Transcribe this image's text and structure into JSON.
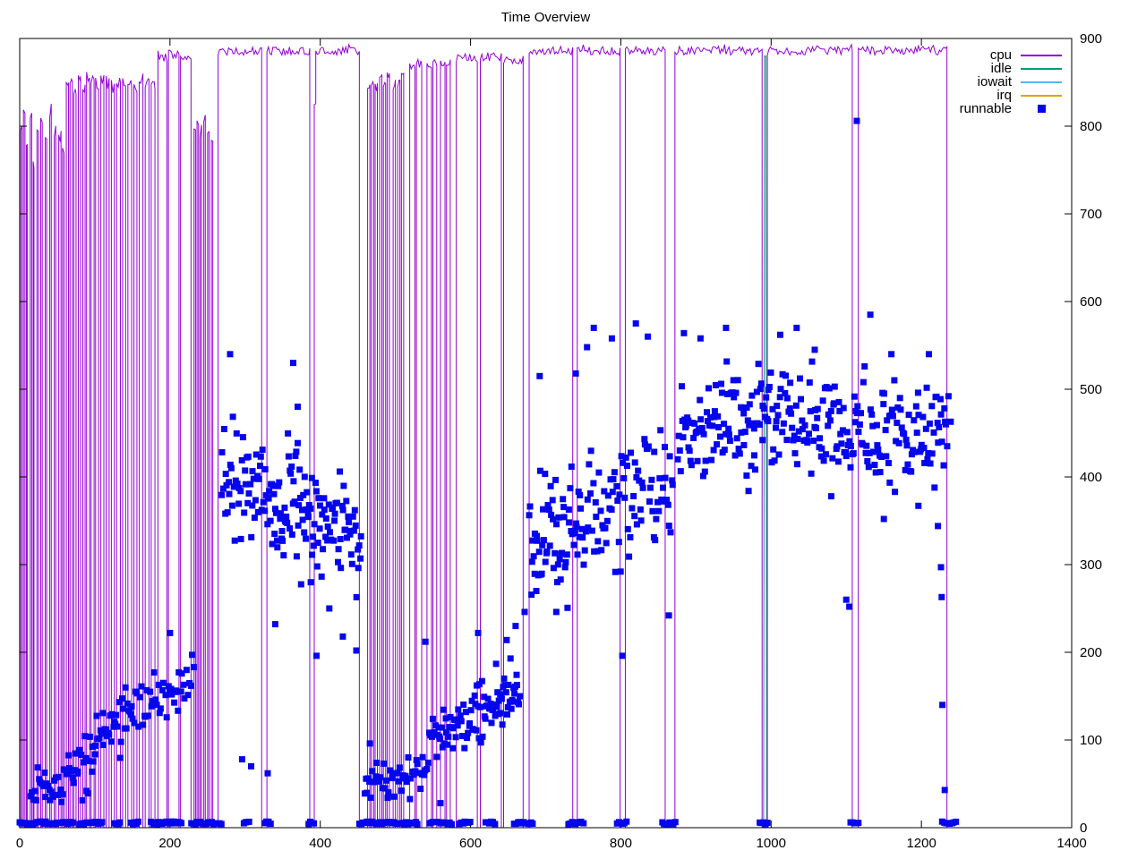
{
  "title": "Time Overview",
  "legend": {
    "entries": [
      {
        "label": "cpu",
        "color": "#9400d3",
        "type": "line"
      },
      {
        "label": "idle",
        "color": "#009e73",
        "type": "line"
      },
      {
        "label": "iowait",
        "color": "#56b4e9",
        "type": "line"
      },
      {
        "label": "irq",
        "color": "#e69f00",
        "type": "line"
      },
      {
        "label": "runnable",
        "color": "#0505ee",
        "type": "point"
      }
    ]
  },
  "chart_data": {
    "type": "line+scatter",
    "title": "Time Overview",
    "xlabel": "",
    "ylabel": "",
    "x_range": [
      0,
      1400
    ],
    "y_range": [
      0,
      900
    ],
    "x_ticks": [
      0,
      200,
      400,
      600,
      800,
      1000,
      1200,
      1400
    ],
    "y_ticks": [
      0,
      100,
      200,
      300,
      400,
      500,
      600,
      700,
      800,
      900
    ],
    "y_axis_side": "right",
    "grid": false,
    "legend_position": "inside top-right",
    "series": {
      "cpu": {
        "color": "#9400d3",
        "style": "pulse-line",
        "plateau_value": 886,
        "segments": [
          [
            1,
            3,
            800
          ],
          [
            5,
            7,
            818
          ],
          [
            9,
            10,
            780
          ],
          [
            14,
            16,
            812
          ],
          [
            18,
            19,
            752
          ],
          [
            23,
            25,
            795
          ],
          [
            28,
            30,
            806
          ],
          [
            34,
            36,
            788
          ],
          [
            40,
            42,
            810
          ],
          [
            46,
            48,
            796
          ],
          [
            52,
            55,
            790
          ],
          [
            57,
            59,
            772
          ],
          [
            62,
            65,
            848
          ],
          [
            67,
            70,
            856
          ],
          [
            72,
            75,
            842
          ],
          [
            78,
            81,
            850
          ],
          [
            84,
            87,
            846
          ],
          [
            89,
            93,
            858
          ],
          [
            95,
            99,
            852
          ],
          [
            101,
            105,
            848
          ],
          [
            108,
            112,
            856
          ],
          [
            115,
            119,
            850
          ],
          [
            122,
            126,
            845
          ],
          [
            129,
            134,
            852
          ],
          [
            137,
            141,
            848
          ],
          [
            144,
            149,
            851
          ],
          [
            152,
            156,
            846
          ],
          [
            159,
            164,
            853
          ],
          [
            167,
            172,
            848
          ],
          [
            175,
            180,
            845
          ],
          [
            184,
            196,
            878
          ],
          [
            198,
            212,
            882
          ],
          [
            214,
            228,
            880
          ],
          [
            232,
            234,
            798
          ],
          [
            236,
            238,
            806
          ],
          [
            240,
            242,
            795
          ],
          [
            245,
            247,
            812
          ],
          [
            250,
            252,
            800
          ],
          [
            255,
            257,
            790
          ],
          [
            264,
            322,
            886
          ],
          [
            329,
            386,
            886
          ],
          [
            392,
            394,
            826
          ],
          [
            394,
            452,
            886
          ],
          [
            463,
            466,
            840
          ],
          [
            468,
            471,
            852
          ],
          [
            473,
            476,
            846
          ],
          [
            479,
            482,
            856
          ],
          [
            484,
            487,
            843
          ],
          [
            489,
            492,
            858
          ],
          [
            497,
            500,
            850
          ],
          [
            503,
            506,
            845
          ],
          [
            508,
            511,
            860
          ],
          [
            519,
            526,
            868
          ],
          [
            528,
            535,
            872
          ],
          [
            542,
            548,
            870
          ],
          [
            550,
            555,
            873
          ],
          [
            560,
            566,
            870
          ],
          [
            568,
            573,
            872
          ],
          [
            581,
            609,
            878
          ],
          [
            613,
            641,
            879
          ],
          [
            644,
            670,
            876
          ],
          [
            678,
            736,
            886
          ],
          [
            742,
            799,
            886
          ],
          [
            806,
            859,
            886
          ],
          [
            872,
            988,
            886
          ],
          [
            995,
            1108,
            886
          ],
          [
            1116,
            1234,
            886
          ]
        ]
      },
      "idle": {
        "color": "#009e73",
        "value": 0,
        "spikes": [
          [
            990,
            993,
            880
          ]
        ]
      },
      "iowait": {
        "color": "#56b4e9",
        "value": 0
      },
      "irq": {
        "color": "#e69f00",
        "value": 0
      },
      "runnable": {
        "color": "#0505ee",
        "marker": "square",
        "marker_size": 7,
        "seed": 123456789,
        "clusters": [
          [
            14,
            60,
            26,
            40,
            55,
            26
          ],
          [
            60,
            95,
            22,
            58,
            75,
            28
          ],
          [
            95,
            150,
            38,
            98,
            132,
            34
          ],
          [
            150,
            232,
            44,
            138,
            162,
            32
          ],
          [
            268,
            330,
            52,
            398,
            388,
            66
          ],
          [
            330,
            395,
            66,
            368,
            352,
            66
          ],
          [
            395,
            455,
            52,
            345,
            330,
            62
          ],
          [
            458,
            545,
            48,
            52,
            62,
            24
          ],
          [
            545,
            600,
            42,
            102,
            120,
            30
          ],
          [
            600,
            666,
            58,
            132,
            152,
            36
          ],
          [
            678,
            745,
            62,
            328,
            345,
            68
          ],
          [
            745,
            870,
            92,
            358,
            395,
            68
          ],
          [
            875,
            1000,
            100,
            452,
            468,
            56
          ],
          [
            1000,
            1120,
            95,
            468,
            458,
            56
          ],
          [
            1120,
            1235,
            88,
            452,
            442,
            56
          ]
        ],
        "outliers": [
          [
            200,
            222
          ],
          [
            280,
            540
          ],
          [
            296,
            78
          ],
          [
            308,
            70
          ],
          [
            330,
            62
          ],
          [
            340,
            232
          ],
          [
            364,
            530
          ],
          [
            370,
            480
          ],
          [
            395,
            196
          ],
          [
            412,
            250
          ],
          [
            430,
            218
          ],
          [
            448,
            202
          ],
          [
            466,
            96
          ],
          [
            540,
            212
          ],
          [
            560,
            28
          ],
          [
            610,
            222
          ],
          [
            648,
            214
          ],
          [
            660,
            230
          ],
          [
            672,
            246
          ],
          [
            692,
            515
          ],
          [
            714,
            246
          ],
          [
            740,
            518
          ],
          [
            755,
            548
          ],
          [
            764,
            570
          ],
          [
            788,
            558
          ],
          [
            802,
            196
          ],
          [
            820,
            575
          ],
          [
            836,
            560
          ],
          [
            864,
            242
          ],
          [
            884,
            564
          ],
          [
            906,
            558
          ],
          [
            940,
            570
          ],
          [
            970,
            384
          ],
          [
            1012,
            562
          ],
          [
            1034,
            570
          ],
          [
            1058,
            545
          ],
          [
            1080,
            378
          ],
          [
            1100,
            260
          ],
          [
            1104,
            252
          ],
          [
            1114,
            806
          ],
          [
            1132,
            585
          ],
          [
            1150,
            352
          ],
          [
            1160,
            540
          ],
          [
            1196,
            367
          ],
          [
            1210,
            540
          ],
          [
            1222,
            344
          ],
          [
            1226,
            297
          ],
          [
            1227,
            263
          ],
          [
            1228,
            140
          ],
          [
            1231,
            43
          ],
          [
            1236,
            492
          ],
          [
            1239,
            463
          ]
        ],
        "baseline_y": 4,
        "baseline_segments": [
          [
            0,
            60
          ],
          [
            64,
            73
          ],
          [
            80,
            90
          ],
          [
            95,
            111
          ],
          [
            126,
            135
          ],
          [
            148,
            158
          ],
          [
            175,
            216
          ],
          [
            228,
            268
          ],
          [
            298,
            306
          ],
          [
            326,
            334
          ],
          [
            384,
            393
          ],
          [
            452,
            530
          ],
          [
            545,
            575
          ],
          [
            585,
            602
          ],
          [
            620,
            634
          ],
          [
            658,
            684
          ],
          [
            730,
            750
          ],
          [
            795,
            808
          ],
          [
            855,
            874
          ],
          [
            985,
            997
          ],
          [
            1106,
            1118
          ],
          [
            1228,
            1246
          ]
        ]
      }
    }
  }
}
